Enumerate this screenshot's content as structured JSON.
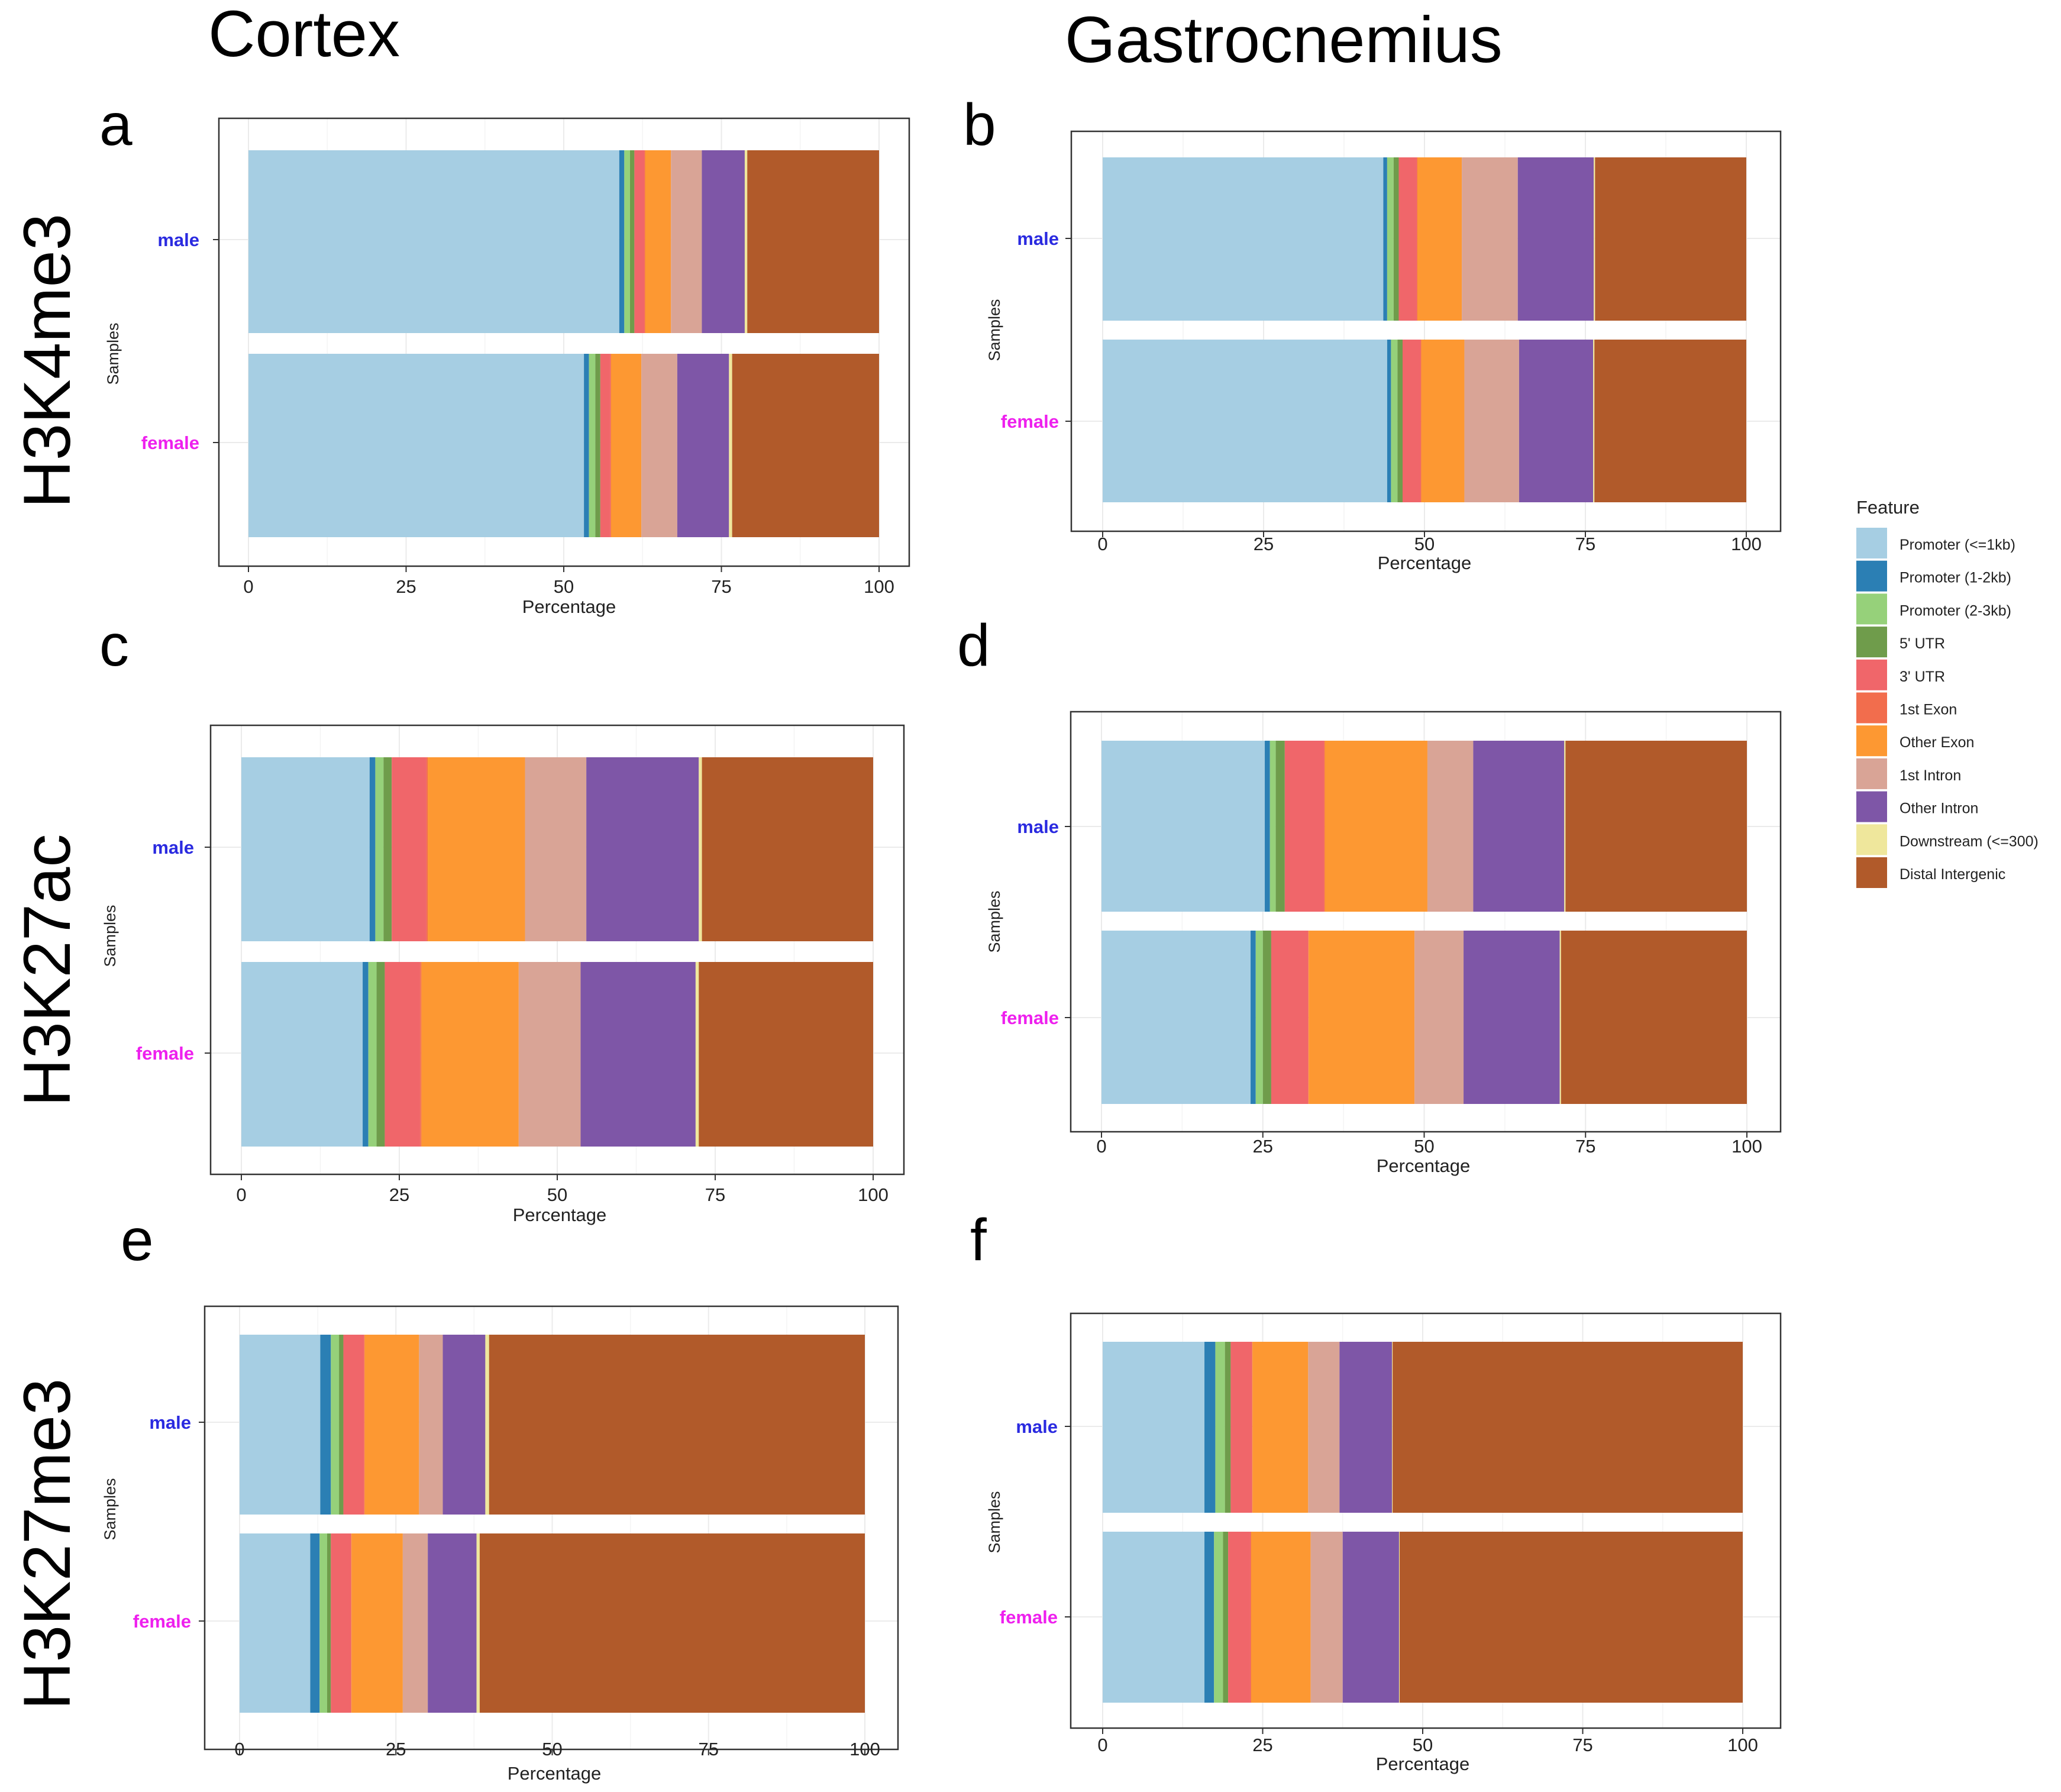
{
  "column_titles": {
    "cortex": "Cortex",
    "gastrocnemius": "Gastrocnemius"
  },
  "row_titles": {
    "h3k4me3": "H3K4me3",
    "h3k27ac": "H3K27ac",
    "h3k27me3": "H3K27me3"
  },
  "panel_letters": [
    "a",
    "b",
    "c",
    "d",
    "e",
    "f"
  ],
  "legend": {
    "title": "Feature",
    "items": [
      {
        "label": "Promoter (<=1kb)",
        "color": "#a6cee3"
      },
      {
        "label": "Promoter (1-2kb)",
        "color": "#2b7fb4"
      },
      {
        "label": "Promoter (2-3kb)",
        "color": "#96d17a"
      },
      {
        "label": "5' UTR",
        "color": "#6f9c4b"
      },
      {
        "label": "3' UTR",
        "color": "#f0666a"
      },
      {
        "label": "1st Exon",
        "color": "#f26d4d"
      },
      {
        "label": "Other Exon",
        "color": "#fd9832"
      },
      {
        "label": "1st Intron",
        "color": "#d9a496"
      },
      {
        "label": "Other Intron",
        "color": "#7e56a7"
      },
      {
        "label": "Downstream (<=300)",
        "color": "#efe79c"
      },
      {
        "label": "Distal Intergenic",
        "color": "#b15a2a"
      }
    ]
  },
  "chart_data": [
    {
      "panel": "a",
      "type": "bar",
      "orientation": "horizontal",
      "stacked": true,
      "title": "Cortex H3K4me3",
      "xlabel": "Percentage",
      "ylabel": "Samples",
      "xlim": [
        0,
        100
      ],
      "xticks": [
        0,
        25,
        50,
        75,
        100
      ],
      "categories": [
        "male",
        "female"
      ],
      "category_colors": [
        "#2a2ae0",
        "#ee20ee"
      ],
      "series": [
        {
          "name": "Promoter (<=1kb)",
          "values": [
            58.8,
            53.2
          ]
        },
        {
          "name": "Promoter (1-2kb)",
          "values": [
            0.8,
            0.8
          ]
        },
        {
          "name": "Promoter (2-3kb)",
          "values": [
            0.9,
            1.0
          ]
        },
        {
          "name": "5' UTR",
          "values": [
            0.7,
            0.8
          ]
        },
        {
          "name": "3' UTR",
          "values": [
            1.6,
            1.6
          ]
        },
        {
          "name": "1st Exon",
          "values": [
            0.1,
            0.1
          ]
        },
        {
          "name": "Other Exon",
          "values": [
            4.1,
            4.8
          ]
        },
        {
          "name": "1st Intron",
          "values": [
            4.9,
            5.7
          ]
        },
        {
          "name": "Other Intron",
          "values": [
            6.8,
            8.2
          ]
        },
        {
          "name": "Downstream (<=300)",
          "values": [
            0.4,
            0.5
          ]
        },
        {
          "name": "Distal Intergenic",
          "values": [
            20.9,
            23.3
          ]
        }
      ]
    },
    {
      "panel": "b",
      "type": "bar",
      "orientation": "horizontal",
      "stacked": true,
      "title": "Gastrocnemius H3K4me3",
      "xlabel": "Percentage",
      "ylabel": "Samples",
      "xlim": [
        0,
        100
      ],
      "xticks": [
        0,
        25,
        50,
        75,
        100
      ],
      "categories": [
        "male",
        "female"
      ],
      "category_colors": [
        "#2a2ae0",
        "#ee20ee"
      ],
      "series": [
        {
          "name": "Promoter (<=1kb)",
          "values": [
            43.6,
            44.2
          ]
        },
        {
          "name": "Promoter (1-2kb)",
          "values": [
            0.6,
            0.6
          ]
        },
        {
          "name": "Promoter (2-3kb)",
          "values": [
            1.0,
            1.0
          ]
        },
        {
          "name": "5' UTR",
          "values": [
            0.8,
            0.8
          ]
        },
        {
          "name": "3' UTR",
          "values": [
            2.8,
            2.8
          ]
        },
        {
          "name": "1st Exon",
          "values": [
            0.1,
            0.1
          ]
        },
        {
          "name": "Other Exon",
          "values": [
            6.9,
            6.7
          ]
        },
        {
          "name": "1st Intron",
          "values": [
            8.7,
            8.5
          ]
        },
        {
          "name": "Other Intron",
          "values": [
            11.8,
            11.5
          ]
        },
        {
          "name": "Downstream (<=300)",
          "values": [
            0.2,
            0.2
          ]
        },
        {
          "name": "Distal Intergenic",
          "values": [
            23.5,
            23.6
          ]
        }
      ]
    },
    {
      "panel": "c",
      "type": "bar",
      "orientation": "horizontal",
      "stacked": true,
      "title": "Cortex H3K27ac",
      "xlabel": "Percentage",
      "ylabel": "Samples",
      "xlim": [
        0,
        100
      ],
      "xticks": [
        0,
        25,
        50,
        75,
        100
      ],
      "categories": [
        "male",
        "female"
      ],
      "category_colors": [
        "#2a2ae0",
        "#ee20ee"
      ],
      "series": [
        {
          "name": "Promoter (<=1kb)",
          "values": [
            20.3,
            19.2
          ]
        },
        {
          "name": "Promoter (1-2kb)",
          "values": [
            0.9,
            0.9
          ]
        },
        {
          "name": "Promoter (2-3kb)",
          "values": [
            1.3,
            1.3
          ]
        },
        {
          "name": "5' UTR",
          "values": [
            1.3,
            1.3
          ]
        },
        {
          "name": "3' UTR",
          "values": [
            5.5,
            5.6
          ]
        },
        {
          "name": "1st Exon",
          "values": [
            0.2,
            0.2
          ]
        },
        {
          "name": "Other Exon",
          "values": [
            15.4,
            15.4
          ]
        },
        {
          "name": "1st Intron",
          "values": [
            9.7,
            9.8
          ]
        },
        {
          "name": "Other Intron",
          "values": [
            17.8,
            18.2
          ]
        },
        {
          "name": "Downstream (<=300)",
          "values": [
            0.5,
            0.5
          ]
        },
        {
          "name": "Distal Intergenic",
          "values": [
            27.1,
            27.6
          ]
        }
      ]
    },
    {
      "panel": "d",
      "type": "bar",
      "orientation": "horizontal",
      "stacked": true,
      "title": "Gastrocnemius H3K27ac",
      "xlabel": "Percentage",
      "ylabel": "Samples",
      "xlim": [
        0,
        100
      ],
      "xticks": [
        0,
        25,
        50,
        75,
        100
      ],
      "categories": [
        "male",
        "female"
      ],
      "category_colors": [
        "#2a2ae0",
        "#ee20ee"
      ],
      "series": [
        {
          "name": "Promoter (<=1kb)",
          "values": [
            25.3,
            23.1
          ]
        },
        {
          "name": "Promoter (1-2kb)",
          "values": [
            0.8,
            0.8
          ]
        },
        {
          "name": "Promoter (2-3kb)",
          "values": [
            0.9,
            1.1
          ]
        },
        {
          "name": "5' UTR",
          "values": [
            1.4,
            1.3
          ]
        },
        {
          "name": "3' UTR",
          "values": [
            6.1,
            5.7
          ]
        },
        {
          "name": "1st Exon",
          "values": [
            0.1,
            0.1
          ]
        },
        {
          "name": "Other Exon",
          "values": [
            15.9,
            16.4
          ]
        },
        {
          "name": "1st Intron",
          "values": [
            7.1,
            7.6
          ]
        },
        {
          "name": "Other Intron",
          "values": [
            14.1,
            14.9
          ]
        },
        {
          "name": "Downstream (<=300)",
          "values": [
            0.2,
            0.2
          ]
        },
        {
          "name": "Distal Intergenic",
          "values": [
            28.1,
            28.8
          ]
        }
      ]
    },
    {
      "panel": "e",
      "type": "bar",
      "orientation": "horizontal",
      "stacked": true,
      "title": "Cortex H3K27me3",
      "xlabel": "Percentage",
      "ylabel": "Samples",
      "xlim": [
        0,
        100
      ],
      "xticks": [
        0,
        25,
        50,
        75,
        100
      ],
      "categories": [
        "male",
        "female"
      ],
      "category_colors": [
        "#2a2ae0",
        "#ee20ee"
      ],
      "series": [
        {
          "name": "Promoter (<=1kb)",
          "values": [
            12.9,
            11.3
          ]
        },
        {
          "name": "Promoter (1-2kb)",
          "values": [
            1.7,
            1.5
          ]
        },
        {
          "name": "Promoter (2-3kb)",
          "values": [
            1.3,
            1.2
          ]
        },
        {
          "name": "5' UTR",
          "values": [
            0.7,
            0.6
          ]
        },
        {
          "name": "3' UTR",
          "values": [
            3.3,
            3.2
          ]
        },
        {
          "name": "1st Exon",
          "values": [
            0.1,
            0.1
          ]
        },
        {
          "name": "Other Exon",
          "values": [
            8.7,
            8.2
          ]
        },
        {
          "name": "1st Intron",
          "values": [
            3.8,
            4.0
          ]
        },
        {
          "name": "Other Intron",
          "values": [
            6.8,
            7.8
          ]
        },
        {
          "name": "Downstream (<=300)",
          "values": [
            0.6,
            0.5
          ]
        },
        {
          "name": "Distal Intergenic",
          "values": [
            60.1,
            61.6
          ]
        }
      ]
    },
    {
      "panel": "f",
      "type": "bar",
      "orientation": "horizontal",
      "stacked": true,
      "title": "Gastrocnemius H3K27me3",
      "xlabel": "Percentage",
      "ylabel": "Samples",
      "xlim": [
        0,
        100
      ],
      "xticks": [
        0,
        25,
        50,
        75,
        100
      ],
      "categories": [
        "male",
        "female"
      ],
      "category_colors": [
        "#2a2ae0",
        "#ee20ee"
      ],
      "series": [
        {
          "name": "Promoter (<=1kb)",
          "values": [
            15.9,
            15.9
          ]
        },
        {
          "name": "Promoter (1-2kb)",
          "values": [
            1.7,
            1.5
          ]
        },
        {
          "name": "Promoter (2-3kb)",
          "values": [
            1.5,
            1.4
          ]
        },
        {
          "name": "5' UTR",
          "values": [
            0.9,
            0.8
          ]
        },
        {
          "name": "3' UTR",
          "values": [
            3.3,
            3.5
          ]
        },
        {
          "name": "1st Exon",
          "values": [
            0.1,
            0.1
          ]
        },
        {
          "name": "Other Exon",
          "values": [
            8.7,
            9.3
          ]
        },
        {
          "name": "1st Intron",
          "values": [
            4.9,
            5.0
          ]
        },
        {
          "name": "Other Intron",
          "values": [
            8.2,
            8.8
          ]
        },
        {
          "name": "Downstream (<=300)",
          "values": [
            0.1,
            0.1
          ]
        },
        {
          "name": "Distal Intergenic",
          "values": [
            54.7,
            53.6
          ]
        }
      ]
    }
  ]
}
